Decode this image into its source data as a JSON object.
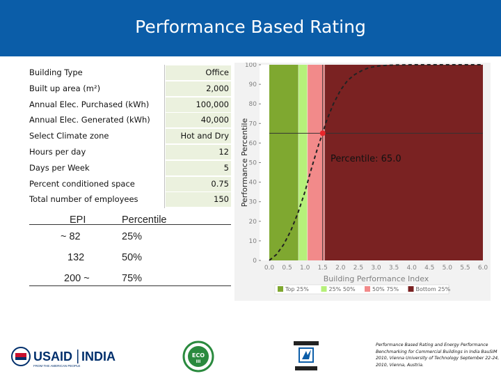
{
  "header": {
    "title": "Performance Based Rating"
  },
  "form": {
    "rows": [
      {
        "label": "Building Type",
        "value": "Office"
      },
      {
        "label": "Built up area (m²)",
        "value": "2,000"
      },
      {
        "label": "Annual Elec. Purchased (kWh)",
        "value": "100,000"
      },
      {
        "label": "Annual Elec. Generated (kWh)",
        "value": "40,000"
      },
      {
        "label": "Select Climate zone",
        "value": "Hot and Dry"
      },
      {
        "label": "Hours per day",
        "value": "12"
      },
      {
        "label": "Days per Week",
        "value": "5"
      },
      {
        "label": "Percent conditioned space",
        "value": "0.75"
      },
      {
        "label": "Total number of employees",
        "value": "150"
      }
    ]
  },
  "epi_table": {
    "headers": [
      "EPI",
      "Percentile"
    ],
    "rows": [
      [
        "~ 82",
        "25%"
      ],
      [
        "132",
        "50%"
      ],
      [
        "200 ~",
        "75%"
      ]
    ]
  },
  "chart_data": {
    "type": "line",
    "xlabel": "Building Performance Index",
    "ylabel": "Performance Percentile",
    "xlim": [
      0.0,
      6.0
    ],
    "ylim": [
      0,
      100
    ],
    "x_ticks": [
      "0.0",
      "0.5",
      "1.0",
      "1.5",
      "2.0",
      "2.5",
      "3.0",
      "3.5",
      "4.0",
      "4.5",
      "5.0",
      "5.5",
      "6.0"
    ],
    "y_ticks": [
      "0",
      "10",
      "20",
      "30",
      "40",
      "50",
      "60",
      "70",
      "80",
      "90",
      "100"
    ],
    "curve": {
      "x": [
        0.0,
        0.2,
        0.4,
        0.6,
        0.8,
        1.0,
        1.2,
        1.4,
        1.5,
        1.6,
        1.8,
        2.0,
        2.2,
        2.4,
        2.6,
        2.8,
        3.0,
        3.2,
        3.4,
        3.6,
        4.0,
        4.5,
        5.0,
        5.5,
        6.0
      ],
      "y": [
        0,
        3,
        8,
        15,
        24,
        35,
        48,
        60,
        65,
        71,
        80,
        87,
        92,
        95,
        97,
        98.5,
        99.2,
        99.6,
        99.8,
        99.9,
        100,
        100,
        100,
        100,
        100
      ]
    },
    "marker": {
      "x": 1.5,
      "y": 65,
      "label": "Percentile: 65.0"
    },
    "bands": [
      {
        "label": "Top 25%",
        "x_from": 0.0,
        "x_to": 0.82,
        "color": "#7fa830"
      },
      {
        "label": "25% 50%",
        "x_from": 0.82,
        "x_to": 1.07,
        "color": "#b6f07a"
      },
      {
        "label": "50% 75%",
        "x_from": 1.07,
        "x_to": 1.55,
        "color": "#f28a8a"
      },
      {
        "label": "Bottom 25%",
        "x_from": 1.55,
        "x_to": 6.0,
        "color": "#7a2222"
      }
    ],
    "legend": [
      "Top 25%",
      "25% 50%",
      "50% 75%",
      "Bottom 25%"
    ],
    "legend_position": "bottom"
  },
  "footer": {
    "citation": "Performance Based Rating and Energy Performance Benchmarking for Commercial Buildings in India BauSIM 2010, Vienna University of Technology September 22-24, 2010, Vienna, Austria.",
    "usaid_text": "USAID",
    "india_text": "INDIA",
    "usaid_tagline": "FROM THE AMERICAN PEOPLE",
    "eco_text": "ECO",
    "eco_sub": "III"
  }
}
